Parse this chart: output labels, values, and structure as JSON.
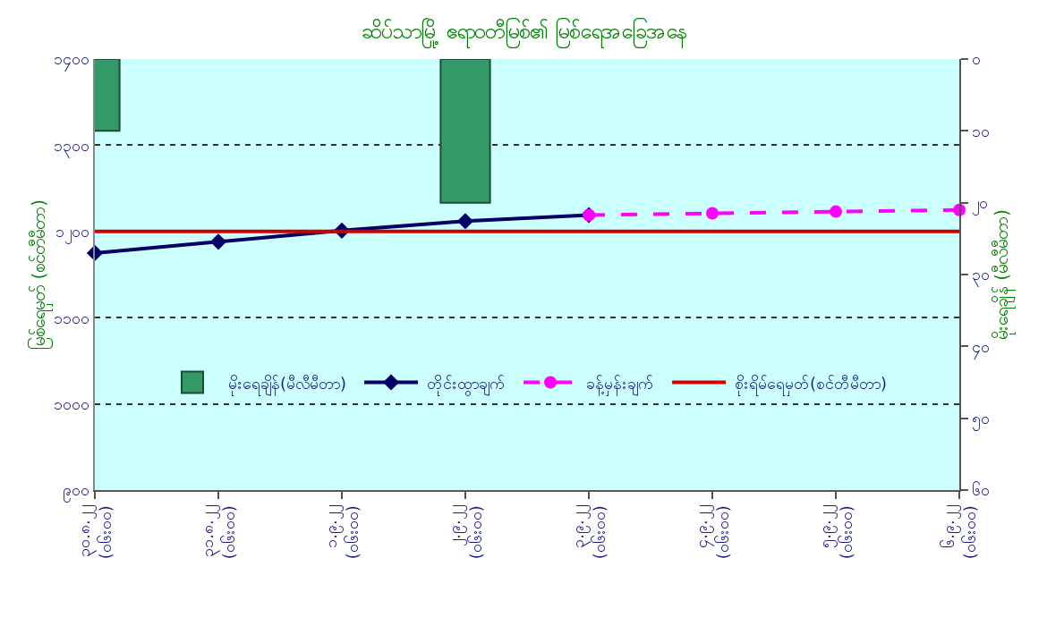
{
  "chart_data": {
    "type": "line",
    "title": "ဆိပ်သာမြို့ ဧရာဝတီမြစ်၏ မြစ်ရေအခြေအနေ",
    "ylabel": "မြစ်ရေမှတ် (စင်တီမီတာ)",
    "y2label": "မိုးရေချိန် (မီလီမီတာ)",
    "categories": [
      "၃၀.၈.၂၂ (၀၆း၀၀)",
      "၃၁.၈.၂၂ (၀၆း၀၀)",
      "၁.၉.၂၂ (၀၆း၀၀)",
      "၂.၉.၂၂ (၀၆း၀၀)",
      "၃.၉.၂၂ (၀၆း၀၀)",
      "၄.၉.၂၂ (၀၆း၀၀)",
      "၅.၉.၂၂ (၀၆း၀၀)",
      "၆.၉.၂၂ (၀၆း၀၀)"
    ],
    "series": [
      {
        "name": "မိုးရေချိန်(မီလီမီတာ)",
        "type": "bar",
        "axis": "y2",
        "color": "#339966",
        "values": [
          10,
          null,
          null,
          20,
          null,
          null,
          null,
          null
        ]
      },
      {
        "name": "တိုင်းထွာချက်",
        "color": "#000066",
        "marker": "diamond",
        "line_style": "solid",
        "values": [
          1175,
          1188,
          1201,
          1212,
          1219,
          null,
          null,
          null
        ]
      },
      {
        "name": "ခန့်မှန်းချက်",
        "color": "#ff00ff",
        "marker": "circle",
        "line_style": "dashed",
        "values": [
          null,
          null,
          null,
          null,
          1219,
          1221,
          1223,
          1225
        ]
      },
      {
        "name": "စိုးရိမ်ရေမှတ်(စင်တီမီတာ)",
        "color": "#cc0000",
        "marker": "none",
        "line_style": "solid",
        "values": [
          1200,
          1200,
          1200,
          1200,
          1200,
          1200,
          1200,
          1200
        ]
      }
    ],
    "ylim": [
      900,
      1400
    ],
    "yticks": [
      {
        "value": 900,
        "label": "၉၀၀"
      },
      {
        "value": 1000,
        "label": "၁၀၀၀"
      },
      {
        "value": 1100,
        "label": "၁၁၀၀"
      },
      {
        "value": 1200,
        "label": "၁၂၀၀"
      },
      {
        "value": 1300,
        "label": "၁၃၀၀"
      },
      {
        "value": 1400,
        "label": "၁၄၀၀"
      }
    ],
    "y2lim": [
      60,
      0
    ],
    "y2ticks": [
      {
        "value": 0,
        "label": "၀"
      },
      {
        "value": 10,
        "label": "၁၀"
      },
      {
        "value": 20,
        "label": "၂၀"
      },
      {
        "value": 30,
        "label": "၃၀"
      },
      {
        "value": 40,
        "label": "၄၀"
      },
      {
        "value": 50,
        "label": "၅၀"
      },
      {
        "value": 60,
        "label": "၆၀"
      }
    ],
    "grid": "y",
    "legend": "center"
  }
}
